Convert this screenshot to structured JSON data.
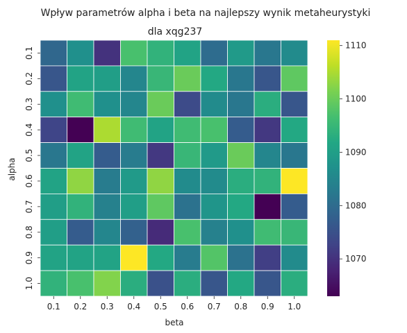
{
  "chart_data": {
    "type": "heatmap",
    "title": "Wpływ parametrów alpha i beta na najlepszy wynik metaheurystyki",
    "subtitle": "dla xqg237",
    "xlabel": "beta",
    "ylabel": "alpha",
    "x_categories": [
      "0.1",
      "0.2",
      "0.3",
      "0.4",
      "0.5",
      "0.6",
      "0.7",
      "0.8",
      "0.9",
      "1.0"
    ],
    "y_categories": [
      "0.1",
      "0.2",
      "0.3",
      "0.4",
      "0.5",
      "0.6",
      "0.7",
      "0.8",
      "0.9",
      "1.0"
    ],
    "values": [
      [
        1079,
        1087,
        1070,
        1097,
        1094,
        1091,
        1080,
        1089,
        1082,
        1086
      ],
      [
        1076,
        1091,
        1090,
        1085,
        1095,
        1100,
        1092,
        1082,
        1076,
        1099
      ],
      [
        1087,
        1096,
        1087,
        1085,
        1100,
        1074,
        1086,
        1082,
        1093,
        1076
      ],
      [
        1073,
        1063,
        1105,
        1096,
        1091,
        1096,
        1097,
        1077,
        1071,
        1092
      ],
      [
        1082,
        1091,
        1077,
        1083,
        1071,
        1095,
        1089,
        1100,
        1085,
        1082
      ],
      [
        1091,
        1103,
        1083,
        1089,
        1103,
        1086,
        1086,
        1093,
        1094,
        1111
      ],
      [
        1090,
        1094,
        1084,
        1090,
        1099,
        1081,
        1088,
        1092,
        1063,
        1077
      ],
      [
        1090,
        1077,
        1085,
        1078,
        1069,
        1097,
        1084,
        1087,
        1096,
        1095
      ],
      [
        1091,
        1091,
        1091,
        1111,
        1092,
        1083,
        1098,
        1081,
        1072,
        1086
      ],
      [
        1094,
        1097,
        1102,
        1093,
        1075,
        1093,
        1076,
        1092,
        1076,
        1093
      ]
    ],
    "colorscale": "viridis",
    "vmin": 1063,
    "vmax": 1111,
    "colorbar_ticks": [
      1070,
      1080,
      1090,
      1100,
      1110
    ],
    "cell_border_color": "#ffffff",
    "grid": false,
    "legend": "colorbar-right"
  }
}
